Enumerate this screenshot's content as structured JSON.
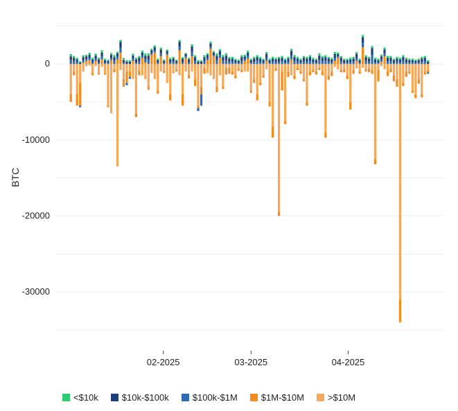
{
  "chart_data": {
    "type": "bar",
    "stacked": true,
    "xlabel": "",
    "ylabel": "BTC",
    "ylim": [
      -37000,
      7500
    ],
    "y_ticks": [
      0,
      -10000,
      -20000,
      -30000
    ],
    "y_tick_labels": [
      "0",
      "-10000",
      "-20000",
      "-30000"
    ],
    "x_ticks": [
      "2025-02-01",
      "2025-03-01",
      "2025-04-01"
    ],
    "x_tick_labels": [
      "02-2025",
      "03-2025",
      "04-2025"
    ],
    "x_start": "2025-01-02",
    "x_end": "2025-04-27",
    "grid": true,
    "legend_position": "bottom",
    "colors": {
      "<$10k": "#2ecc71",
      "$10k-$100k": "#1f3f7a",
      "$100k-$1M": "#2f6bb0",
      "$1M-$10M": "#f28c1e",
      ">$10M": "#f5a95a"
    },
    "series": [
      {
        "name": "<$10k",
        "values": [
          300,
          250,
          200,
          150,
          250,
          200,
          280,
          220,
          260,
          240,
          300,
          200,
          150,
          250,
          280,
          220,
          260,
          300,
          200,
          200,
          250,
          220,
          260,
          240,
          280,
          300,
          200,
          250,
          220,
          260,
          180,
          200,
          220,
          240,
          180,
          260,
          200,
          150,
          220,
          300,
          250,
          200,
          180,
          260,
          220,
          240,
          200,
          300,
          250,
          280,
          300,
          220,
          240,
          200,
          180,
          260,
          220,
          250,
          200,
          240,
          260,
          220,
          200,
          280,
          200,
          250,
          220,
          240,
          260,
          200,
          250,
          300,
          280,
          220,
          200,
          250,
          240,
          260,
          220,
          200,
          300,
          250,
          260,
          240,
          220,
          280,
          200,
          250,
          200,
          200,
          220,
          240,
          260,
          200,
          300,
          250,
          240,
          260,
          220,
          200,
          240,
          260,
          250,
          250,
          200,
          240,
          220,
          260,
          220,
          200,
          200,
          180,
          200,
          240,
          250,
          200
        ]
      },
      {
        "name": "$10k-$100k",
        "values": [
          500,
          400,
          300,
          200,
          400,
          350,
          400,
          350,
          400,
          350,
          500,
          300,
          250,
          400,
          500,
          450,
          800,
          300,
          300,
          300,
          400,
          350,
          450,
          400,
          500,
          600,
          350,
          400,
          300,
          500,
          250,
          300,
          350,
          400,
          250,
          600,
          400,
          300,
          350,
          700,
          500,
          300,
          300,
          500,
          400,
          400,
          300,
          600,
          500,
          500,
          600,
          400,
          400,
          300,
          250,
          500,
          350,
          450,
          300,
          400,
          500,
          400,
          300,
          500,
          300,
          400,
          350,
          400,
          450,
          300,
          400,
          600,
          500,
          400,
          300,
          450,
          400,
          500,
          350,
          300,
          600,
          450,
          500,
          400,
          350,
          500,
          300,
          450,
          300,
          300,
          350,
          400,
          500,
          300,
          700,
          500,
          400,
          900,
          350,
          300,
          400,
          500,
          450,
          450,
          300,
          400,
          350,
          500,
          350,
          300,
          300,
          250,
          300,
          400,
          450,
          300
        ]
      },
      {
        "name": "$100k-$1M",
        "values": [
          500,
          400,
          300,
          -200,
          300,
          250,
          300,
          250,
          300,
          250,
          400,
          200,
          150,
          300,
          400,
          350,
          600,
          200,
          -300,
          -250,
          300,
          250,
          350,
          300,
          400,
          500,
          250,
          300,
          200,
          400,
          150,
          200,
          250,
          300,
          150,
          500,
          300,
          200,
          250,
          600,
          400,
          -400,
          -1500,
          400,
          300,
          300,
          200,
          500,
          400,
          400,
          500,
          300,
          300,
          200,
          150,
          400,
          250,
          350,
          200,
          300,
          400,
          300,
          200,
          400,
          200,
          300,
          250,
          300,
          350,
          200,
          300,
          500,
          400,
          300,
          200,
          350,
          300,
          400,
          250,
          200,
          500,
          350,
          400,
          300,
          250,
          400,
          200,
          350,
          200,
          200,
          250,
          300,
          400,
          200,
          600,
          400,
          300,
          1200,
          250,
          200,
          300,
          400,
          350,
          350,
          200,
          300,
          250,
          400,
          250,
          200,
          200,
          150,
          200,
          300,
          350,
          -200
        ]
      },
      {
        "name": "$1M-$10M",
        "values": [
          -1000,
          -500,
          -1500,
          -3000,
          200,
          400,
          500,
          -300,
          400,
          -200,
          600,
          -200,
          -200,
          500,
          -400,
          600,
          1500,
          -1000,
          -1500,
          -700,
          400,
          -500,
          -600,
          800,
          200,
          -400,
          1200,
          1500,
          -400,
          1000,
          -300,
          1200,
          -800,
          -200,
          -300,
          1800,
          -1500,
          800,
          -400,
          1000,
          -900,
          -300,
          -1000,
          -800,
          500,
          2000,
          1000,
          -700,
          800,
          -300,
          -900,
          -800,
          -400,
          -400,
          -300,
          -300,
          400,
          700,
          -300,
          -500,
          -800,
          -300,
          -300,
          400,
          -600,
          -1500,
          -300,
          -500,
          -2500,
          -400,
          -700,
          600,
          -500,
          -300,
          -300,
          -300,
          -500,
          -500,
          -300,
          -400,
          -300,
          -500,
          -700,
          -600,
          -600,
          400,
          800,
          -300,
          -400,
          -500,
          -1000,
          -500,
          400,
          -300,
          2200,
          -300,
          -500,
          -500,
          -700,
          -1500,
          300,
          1000,
          -600,
          -500,
          -800,
          -1000,
          -3000,
          -400,
          -700,
          -300,
          -300,
          -500,
          -600,
          -400,
          -400,
          -300
        ]
      },
      {
        "name": ">$10M",
        "values": [
          -4000,
          -1000,
          -4000,
          -2500,
          -1000,
          -300,
          -200,
          -1200,
          -300,
          -1200,
          -400,
          -1200,
          -5500,
          -6500,
          -700,
          -13500,
          -800,
          -2000,
          -1000,
          -1000,
          -2000,
          -6500,
          -900,
          -1500,
          -2000,
          -3000,
          -1200,
          -2000,
          -3500,
          -1000,
          -900,
          -2500,
          -4000,
          -1000,
          -700,
          -1500,
          -4000,
          -1000,
          -1500,
          -1000,
          -2000,
          -5500,
          -3000,
          -500,
          -1200,
          -1500,
          -2000,
          -3000,
          -1500,
          -3000,
          -500,
          -500,
          -1000,
          -1500,
          -600,
          -800,
          -1000,
          -1000,
          -3500,
          -2000,
          -4000,
          -2500,
          -1500,
          -700,
          -5000,
          -8200,
          -600,
          -19500,
          -1000,
          -7500,
          -1000,
          -1500,
          -1500,
          -500,
          -1000,
          -2000,
          -5000,
          -1000,
          -800,
          -1000,
          -500,
          -1000,
          -9000,
          -1500,
          -1000,
          -400,
          -700,
          -800,
          -700,
          -1500,
          -5000,
          -800,
          -600,
          -1000,
          -500,
          -700,
          -600,
          -800,
          -12500,
          -800,
          -300,
          -700,
          -1000,
          -600,
          -1500,
          -2000,
          -31000,
          -2500,
          -1000,
          -1000,
          -3500,
          -4000,
          -2000,
          -4000,
          -1000,
          -800
        ]
      }
    ]
  },
  "legend": {
    "items": [
      {
        "label": "<$10k",
        "color": "#2ecc71"
      },
      {
        "label": "$10k-$100k",
        "color": "#1f3f7a"
      },
      {
        "label": "$100k-$1M",
        "color": "#2f6bb0"
      },
      {
        "label": "$1M-$10M",
        "color": "#f28c1e"
      },
      {
        "label": ">$10M",
        "color": "#f5a95a"
      }
    ]
  }
}
